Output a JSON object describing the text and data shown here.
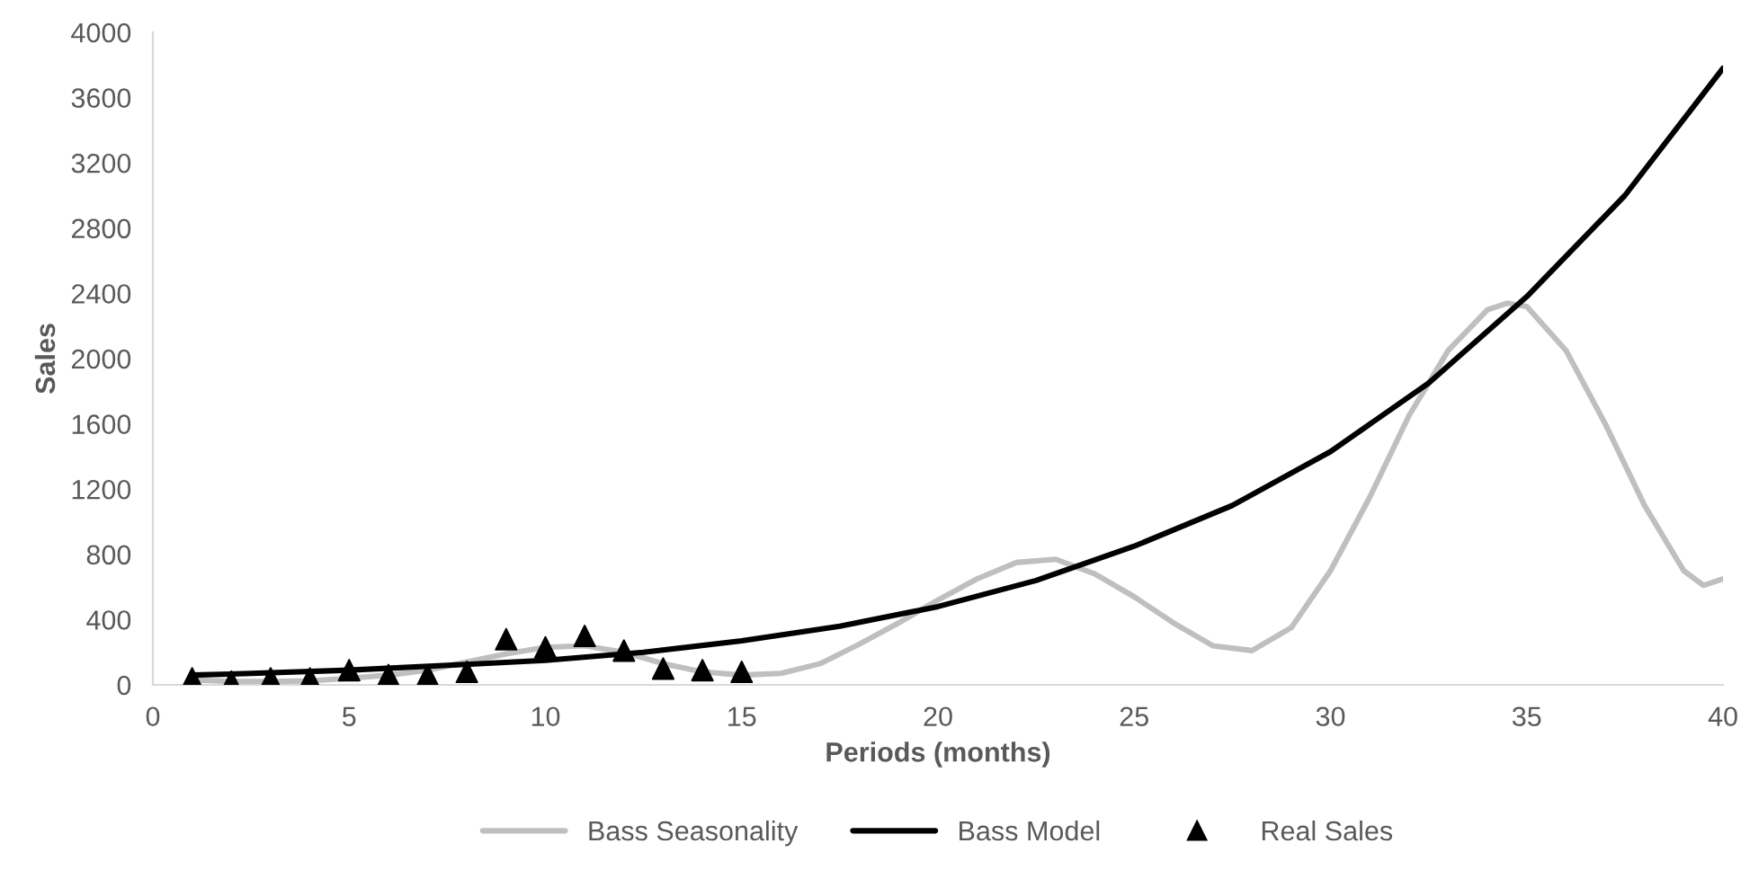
{
  "chart_data": {
    "type": "line",
    "xlabel": "Periods (months)",
    "ylabel": "Sales",
    "xlim": [
      0,
      40
    ],
    "xticks": [
      0,
      5,
      10,
      15,
      20,
      25,
      30,
      35,
      40
    ],
    "ylim": [
      0,
      4000
    ],
    "yticks": [
      0,
      400,
      800,
      1200,
      1600,
      2000,
      2400,
      2800,
      3200,
      3600,
      4000
    ],
    "grid": false,
    "legend": "bottom",
    "series": [
      {
        "name": "Bass Seasonality",
        "color": "#bfbfbf",
        "marker": "none",
        "x": [
          1,
          2,
          3,
          4,
          5,
          6,
          7,
          8,
          9,
          10,
          11,
          12,
          13,
          14,
          15,
          16,
          17,
          18,
          19,
          20,
          21,
          22,
          23,
          24,
          25,
          26,
          27,
          28,
          29,
          30,
          31,
          32,
          33,
          34,
          34.5,
          35,
          36,
          37,
          38,
          39,
          39.5,
          40
        ],
        "values": [
          30,
          20,
          20,
          25,
          40,
          60,
          90,
          140,
          190,
          230,
          240,
          200,
          130,
          80,
          60,
          70,
          130,
          250,
          380,
          520,
          650,
          750,
          770,
          680,
          540,
          380,
          240,
          210,
          350,
          700,
          1150,
          1650,
          2050,
          2300,
          2340,
          2320,
          2050,
          1600,
          1100,
          700,
          610,
          650
        ]
      },
      {
        "name": "Bass Model",
        "color": "#000000",
        "marker": "none",
        "x": [
          1,
          2.5,
          5,
          7.5,
          10,
          12.5,
          15,
          17.5,
          20,
          22.5,
          25,
          27.5,
          30,
          32.5,
          35,
          37.5,
          40
        ],
        "values": [
          60,
          70,
          90,
          120,
          150,
          200,
          270,
          360,
          480,
          640,
          850,
          1100,
          1430,
          1850,
          2380,
          3000,
          3780
        ]
      },
      {
        "name": "Real Sales",
        "type": "scatter",
        "color": "#000000",
        "marker": "triangle",
        "x": [
          1,
          2,
          3,
          4,
          5,
          6,
          7,
          8,
          9,
          10,
          11,
          12,
          13,
          14,
          15
        ],
        "values": [
          40,
          20,
          40,
          40,
          90,
          60,
          60,
          80,
          280,
          230,
          300,
          210,
          100,
          90,
          80
        ]
      }
    ]
  }
}
